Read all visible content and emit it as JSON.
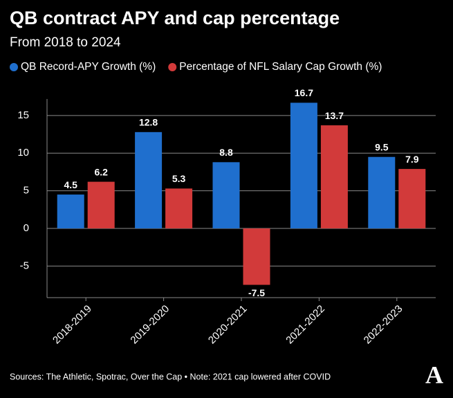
{
  "chart_data": {
    "type": "bar",
    "title": "QB contract APY and cap percentage",
    "subtitle": "From 2018 to 2024",
    "categories": [
      "2018-2019",
      "2019-2020",
      "2020-2021",
      "2021-2022",
      "2022-2023"
    ],
    "series": [
      {
        "name": "QB Record-APY Growth (%)",
        "color": "#1f6fce",
        "values": [
          4.5,
          12.8,
          8.8,
          16.7,
          9.5
        ]
      },
      {
        "name": "Percentage of NFL Salary Cap Growth (%)",
        "color": "#d23a3a",
        "values": [
          6.2,
          5.3,
          -7.5,
          13.7,
          7.9
        ]
      }
    ],
    "ylim": [
      -9.2,
      17.2
    ],
    "yticks": [
      -5,
      0,
      5,
      10,
      15
    ],
    "grid": true,
    "source": "Sources: The Athletic, Spotrac, Over the Cap • Note: 2021 cap lowered after COVID",
    "logo": "A"
  }
}
